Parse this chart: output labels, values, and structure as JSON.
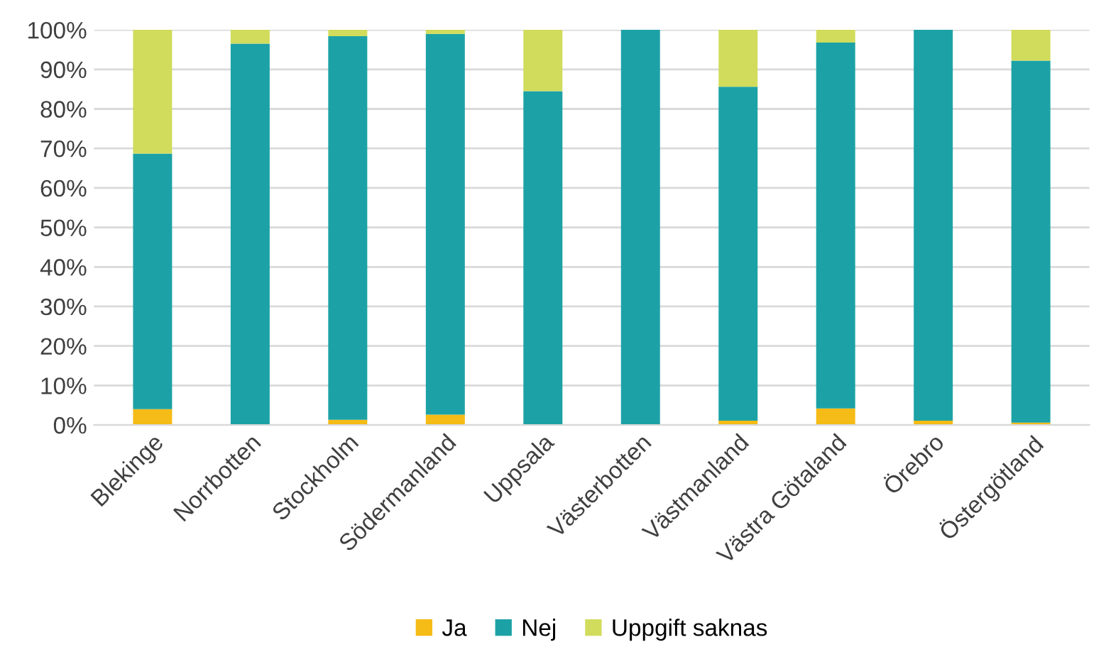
{
  "chart_data": {
    "type": "bar",
    "stacked": true,
    "categories": [
      "Blekinge",
      "Norrbotten",
      "Stockholm",
      "Södermanland",
      "Uppsala",
      "Västerbotten",
      "Västmanland",
      "Västra Götaland",
      "Örebro",
      "Östergötland"
    ],
    "series": [
      {
        "name": "Ja",
        "color": "#f5bb16",
        "values": [
          4.0,
          0,
          1.3,
          2.6,
          0,
          0,
          1.1,
          4.2,
          1.1,
          0.6
        ]
      },
      {
        "name": "Nej",
        "color": "#1ca2a6",
        "values": [
          64.7,
          96.5,
          97.1,
          96.4,
          84.5,
          100,
          84.5,
          92.6,
          98.9,
          91.6
        ]
      },
      {
        "name": "Uppgift saknas",
        "color": "#d1dc5c",
        "values": [
          31.3,
          3.5,
          1.6,
          1.0,
          15.5,
          0,
          14.4,
          3.2,
          0,
          7.8
        ]
      }
    ],
    "ylim": [
      0,
      100
    ],
    "yticks": [
      {
        "value": 0,
        "label": "0%"
      },
      {
        "value": 10,
        "label": "10%"
      },
      {
        "value": 20,
        "label": "20%"
      },
      {
        "value": 30,
        "label": "30%"
      },
      {
        "value": 40,
        "label": "40%"
      },
      {
        "value": 50,
        "label": "50%"
      },
      {
        "value": 60,
        "label": "60%"
      },
      {
        "value": 70,
        "label": "70%"
      },
      {
        "value": 80,
        "label": "80%"
      },
      {
        "value": 90,
        "label": "90%"
      },
      {
        "value": 100,
        "label": "100%"
      }
    ],
    "grid": "y",
    "legend": "bottom"
  }
}
